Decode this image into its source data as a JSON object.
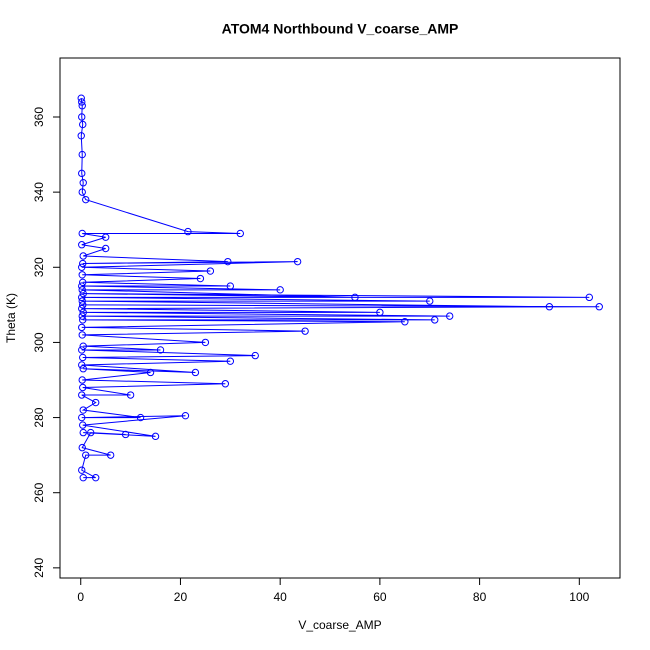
{
  "chart_data": {
    "type": "line",
    "title": "ATOM4 Northbound V_coarse_AMP",
    "x_label": "V_coarse_AMP",
    "y_label": "Theta (K)",
    "color": "#0000ff",
    "markers": true,
    "grid": false,
    "xlim": [
      -4.16,
      108.16
    ],
    "ylim": [
      237.3,
      375.7
    ],
    "xticks": [
      0,
      20,
      40,
      60,
      80,
      100
    ],
    "yticks": [
      240,
      260,
      280,
      300,
      320,
      340,
      360
    ],
    "x": [
      0.5,
      3,
      0.2,
      1,
      6,
      0.3,
      2,
      9,
      0.5,
      15,
      0.4,
      21,
      0.2,
      12,
      0.5,
      3,
      0.2,
      10,
      0.4,
      29,
      0.3,
      14,
      0.5,
      23,
      0.2,
      30,
      0.4,
      35,
      0.2,
      16,
      0.5,
      25,
      0.3,
      45,
      0.2,
      65,
      0.4,
      71,
      0.3,
      74,
      0.5,
      60,
      0.2,
      104,
      0.4,
      94,
      0.3,
      70,
      0.2,
      102,
      0.5,
      55,
      0.3,
      40,
      0.2,
      30,
      0.4,
      24,
      0.3,
      26,
      0.2,
      43.5,
      0.4,
      29.5,
      0.5,
      5,
      0.2,
      5,
      0.3,
      32,
      21.5,
      1,
      0.3,
      0.5,
      0.2,
      0.3,
      0.1,
      0.4,
      0.2,
      0.3,
      0.1,
      0.2
    ],
    "values": [
      264,
      264,
      266,
      270,
      270,
      272,
      276,
      275.5,
      276,
      275,
      278,
      280.5,
      280,
      280,
      282,
      284,
      286,
      286,
      288,
      289,
      290,
      292,
      293,
      292,
      294,
      295,
      296,
      296.5,
      298,
      298,
      299,
      300,
      302,
      303,
      304,
      305.5,
      306,
      306,
      307,
      307,
      308,
      308,
      309,
      309.5,
      310,
      309.5,
      311,
      311,
      312,
      312,
      313,
      312,
      314,
      314,
      315,
      315,
      316,
      317,
      318,
      319,
      320,
      321.5,
      321,
      321.5,
      323,
      325,
      326,
      328,
      329,
      329,
      329.5,
      338,
      340,
      342.5,
      345,
      350,
      355,
      358,
      360,
      363,
      365,
      364
    ]
  }
}
